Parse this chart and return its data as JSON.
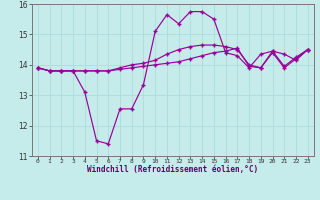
{
  "xlabel": "Windchill (Refroidissement éolien,°C)",
  "background_color": "#c5ecea",
  "line_color": "#990099",
  "grid_color": "#b0dede",
  "hours": [
    0,
    1,
    2,
    3,
    4,
    5,
    6,
    7,
    8,
    9,
    10,
    11,
    12,
    13,
    14,
    15,
    16,
    17,
    18,
    19,
    20,
    21,
    22,
    23
  ],
  "temp_line": [
    13.9,
    13.8,
    13.8,
    13.8,
    13.8,
    13.8,
    13.8,
    13.85,
    13.9,
    13.95,
    14.0,
    14.05,
    14.1,
    14.2,
    14.3,
    14.4,
    14.45,
    14.55,
    13.95,
    13.9,
    14.4,
    13.9,
    14.2,
    14.5
  ],
  "windchill_line": [
    13.9,
    13.8,
    13.8,
    13.8,
    13.1,
    11.5,
    11.4,
    12.55,
    12.55,
    13.35,
    15.1,
    15.65,
    15.35,
    15.75,
    15.75,
    15.5,
    14.4,
    14.3,
    13.9,
    14.35,
    14.45,
    14.35,
    14.15,
    14.5
  ],
  "line3": [
    13.9,
    13.8,
    13.8,
    13.8,
    13.8,
    13.8,
    13.8,
    13.9,
    14.0,
    14.05,
    14.15,
    14.35,
    14.5,
    14.6,
    14.65,
    14.65,
    14.6,
    14.5,
    14.0,
    13.9,
    14.45,
    13.95,
    14.25,
    14.5
  ],
  "ylim": [
    11,
    16
  ],
  "yticks": [
    11,
    12,
    13,
    14,
    15,
    16
  ],
  "xtick_labels": [
    "0",
    "1",
    "2",
    "3",
    "4",
    "5",
    "6",
    "7",
    "8",
    "9",
    "10",
    "11",
    "12",
    "13",
    "14",
    "15",
    "16",
    "17",
    "18",
    "19",
    "20",
    "21",
    "22",
    "23"
  ]
}
